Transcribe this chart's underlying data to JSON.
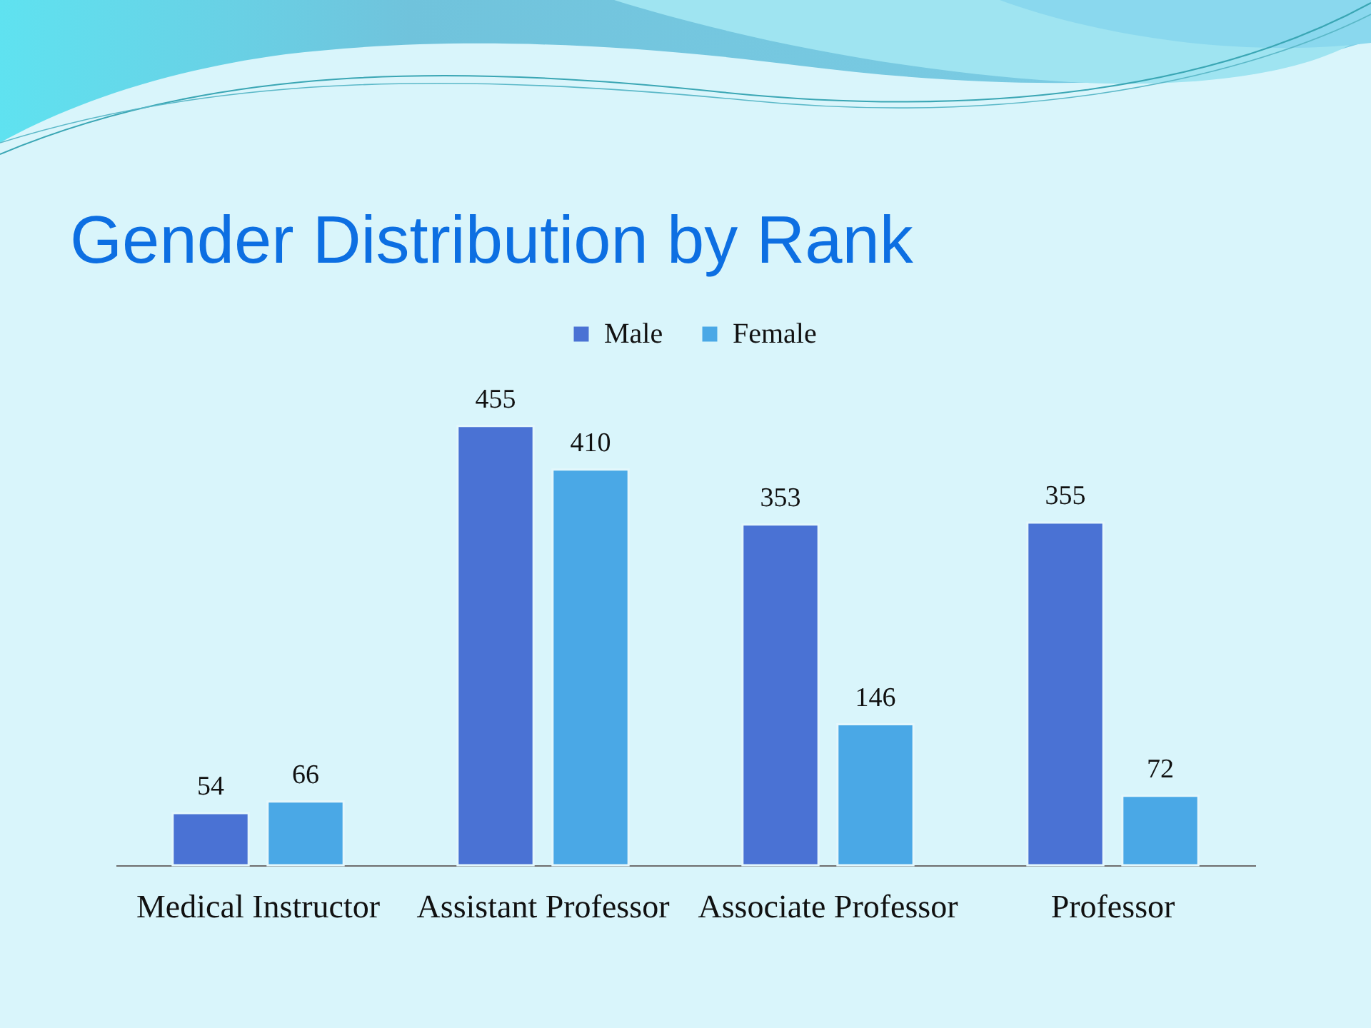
{
  "chart_data": {
    "type": "bar",
    "title": "Gender Distribution by Rank",
    "categories": [
      "Medical Instructor",
      "Assistant Professor",
      "Associate Professor",
      "Professor"
    ],
    "series": [
      {
        "name": "Male",
        "color": "#4a72d4",
        "values": [
          54,
          455,
          353,
          355
        ]
      },
      {
        "name": "Female",
        "color": "#4aa8e6",
        "values": [
          66,
          410,
          146,
          72
        ]
      }
    ],
    "data_labels": true,
    "legend": "top",
    "tick_labels": "x"
  }
}
